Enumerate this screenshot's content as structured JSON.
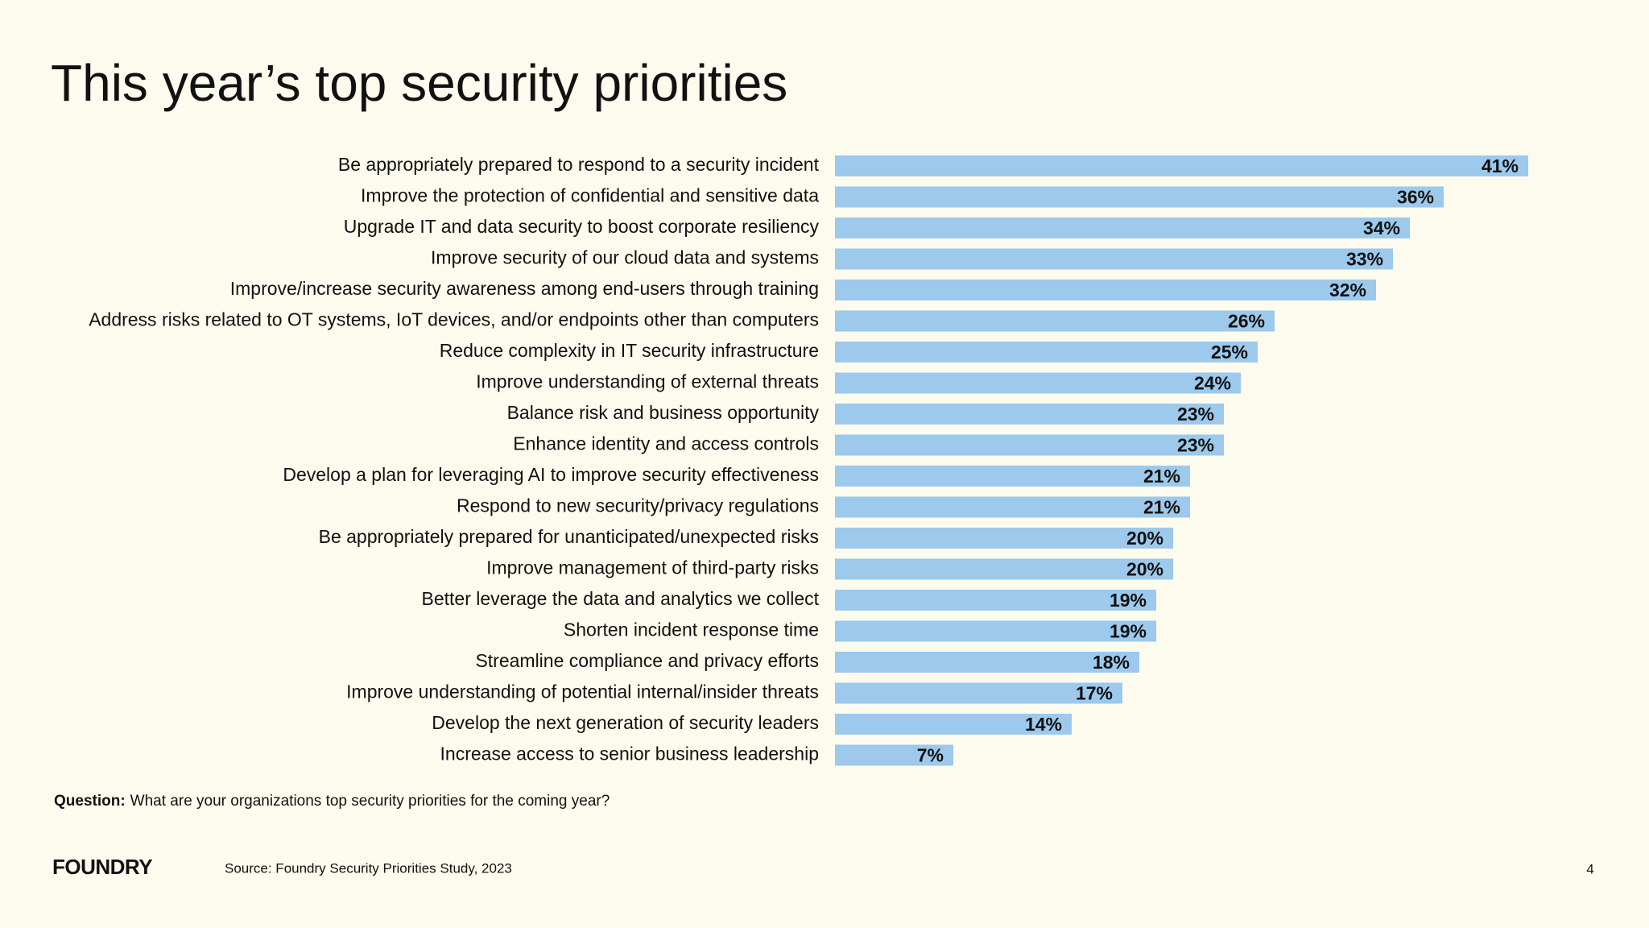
{
  "chart_data": {
    "type": "bar",
    "orientation": "horizontal",
    "title": "This year’s top security priorities",
    "categories": [
      "Be appropriately prepared to respond to a security incident",
      "Improve the protection of confidential and sensitive data",
      "Upgrade IT and data security to boost corporate resiliency",
      "Improve security of our cloud data and systems",
      "Improve/increase security awareness among end-users through training",
      "Address risks related to OT systems, IoT devices, and/or endpoints other than computers",
      "Reduce complexity in IT security infrastructure",
      "Improve understanding of external threats",
      "Balance risk and business opportunity",
      "Enhance identity and access controls",
      "Develop a plan for leveraging AI to improve security effectiveness",
      "Respond to new security/privacy regulations",
      "Be appropriately prepared for unanticipated/unexpected risks",
      "Improve management of third-party risks",
      "Better leverage the data and analytics we collect",
      "Shorten incident response time",
      "Streamline compliance and privacy efforts",
      "Improve understanding of potential internal/insider threats",
      "Develop the next generation of security leaders",
      "Increase access to senior business leadership"
    ],
    "values": [
      41,
      36,
      34,
      33,
      32,
      26,
      25,
      24,
      23,
      23,
      21,
      21,
      20,
      20,
      19,
      19,
      18,
      17,
      14,
      7
    ],
    "value_labels": [
      "41%",
      "36%",
      "34%",
      "33%",
      "32%",
      "26%",
      "25%",
      "24%",
      "23%",
      "23%",
      "21%",
      "21%",
      "20%",
      "20%",
      "19%",
      "19%",
      "18%",
      "17%",
      "14%",
      "7%"
    ],
    "color": "#9cc9ec",
    "question_label": "Question:",
    "question": "What are your organizations top security priorities for the coming year?",
    "source": "Source: Foundry Security Priorities Study, 2023",
    "logo": "FOUNDRY",
    "page_number": "4"
  }
}
